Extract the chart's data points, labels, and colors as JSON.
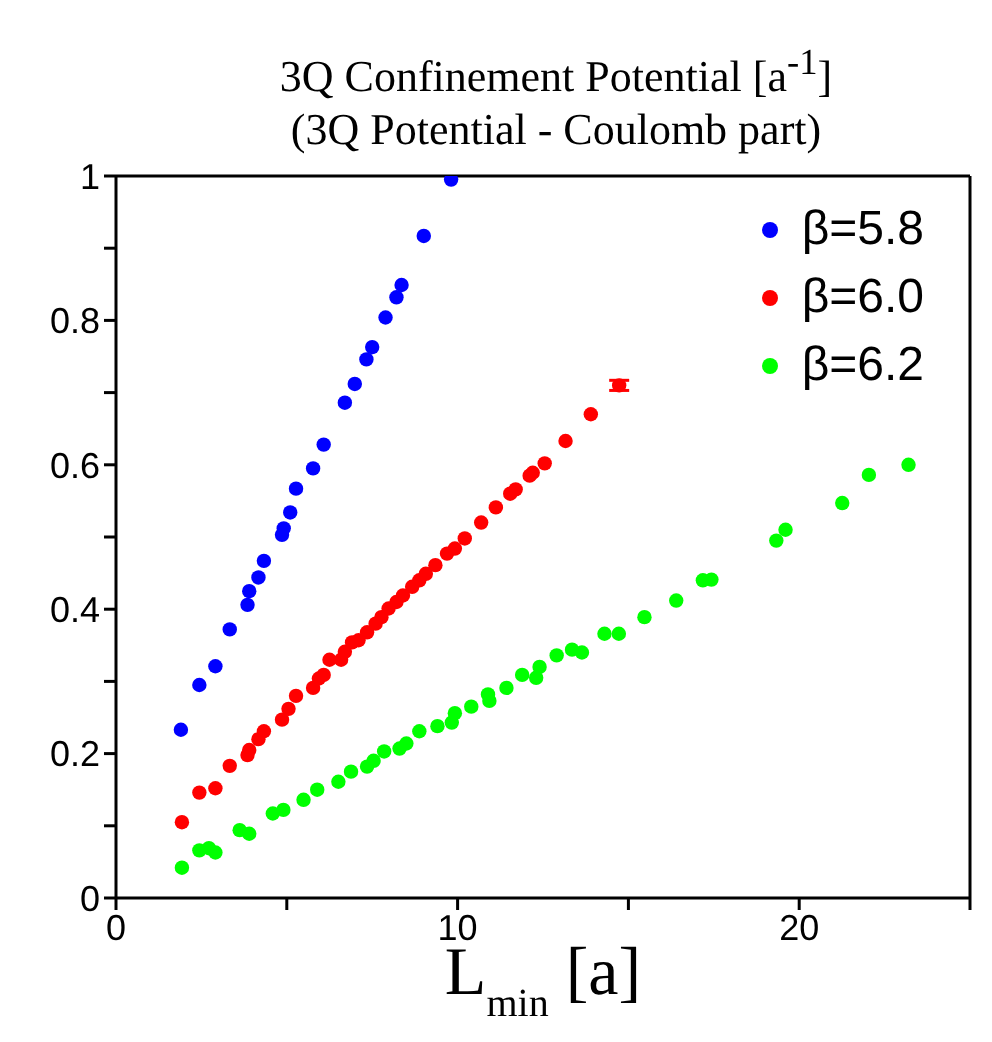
{
  "chart_data": {
    "type": "scatter",
    "title": "3Q Confinement Potential [a$^{-1}$]",
    "subtitle": "(3Q Potential - Coulomb part)",
    "xlabel": "L$_{min}$ [a]",
    "xlim": [
      0,
      25
    ],
    "xticks": [
      0,
      {
        "value": 5,
        "label": null
      },
      10,
      {
        "value": 15,
        "label": null
      },
      20,
      {
        "value": 25,
        "label": null
      }
    ],
    "ylim": [
      0,
      1
    ],
    "yticks": [
      0,
      {
        "value": 0.1,
        "label": null
      },
      0.2,
      {
        "value": 0.3,
        "label": null
      },
      0.4,
      {
        "value": 0.5,
        "label": null
      },
      0.6,
      {
        "value": 0.7,
        "label": null
      },
      0.8,
      {
        "value": 0.9,
        "label": null
      },
      1
    ],
    "grid": false,
    "legend": "top right",
    "marker": "circle",
    "series": [
      {
        "name": "β=5.8",
        "color": "#0000ff",
        "x": [
          1.9,
          2.44,
          2.91,
          3.33,
          3.85,
          3.9,
          4.17,
          4.33,
          4.86,
          4.91,
          5.1,
          5.27,
          5.77,
          6.08,
          6.7,
          6.99,
          7.33,
          7.5,
          7.89,
          8.21,
          8.36,
          9.01,
          9.81
        ],
        "values": [
          0.233,
          0.295,
          0.321,
          0.372,
          0.406,
          0.425,
          0.444,
          0.467,
          0.503,
          0.512,
          0.534,
          0.567,
          0.595,
          0.628,
          0.686,
          0.712,
          0.746,
          0.763,
          0.804,
          0.832,
          0.849,
          0.917,
          0.995
        ]
      },
      {
        "name": "β=6.0",
        "color": "#ff0000",
        "x": [
          1.93,
          2.44,
          2.91,
          3.33,
          3.85,
          3.9,
          4.17,
          4.33,
          4.86,
          5.05,
          5.27,
          5.77,
          5.94,
          6.08,
          6.25,
          6.59,
          6.7,
          6.91,
          7.1,
          7.35,
          7.6,
          7.77,
          7.98,
          8.21,
          8.4,
          8.67,
          8.88,
          9.07,
          9.35,
          9.69,
          9.92,
          10.21,
          10.69,
          11.12,
          11.54,
          11.7,
          12.11,
          12.2,
          12.55,
          13.16,
          13.9,
          14.73
        ],
        "values": [
          0.105,
          0.146,
          0.152,
          0.183,
          0.198,
          0.205,
          0.22,
          0.231,
          0.247,
          0.262,
          0.28,
          0.291,
          0.304,
          0.309,
          0.33,
          0.33,
          0.341,
          0.354,
          0.357,
          0.368,
          0.38,
          0.389,
          0.401,
          0.41,
          0.419,
          0.431,
          0.44,
          0.449,
          0.461,
          0.477,
          0.484,
          0.498,
          0.52,
          0.541,
          0.56,
          0.566,
          0.585,
          0.589,
          0.602,
          0.633,
          0.67,
          0.71
        ],
        "errors": [
          null,
          null,
          null,
          null,
          null,
          null,
          null,
          null,
          null,
          null,
          null,
          null,
          null,
          null,
          null,
          null,
          null,
          null,
          null,
          null,
          null,
          null,
          null,
          null,
          null,
          null,
          null,
          null,
          null,
          null,
          null,
          null,
          null,
          null,
          null,
          null,
          null,
          null,
          null,
          null,
          null,
          0.007
        ]
      },
      {
        "name": "β=6.2",
        "color": "#00ff00",
        "x": [
          1.93,
          2.44,
          2.72,
          2.91,
          3.62,
          3.9,
          4.59,
          4.9,
          5.49,
          5.89,
          6.51,
          6.88,
          7.35,
          7.54,
          7.85,
          8.3,
          8.5,
          8.88,
          9.41,
          9.83,
          9.92,
          10.4,
          10.89,
          10.93,
          11.43,
          11.89,
          12.3,
          12.4,
          12.9,
          13.35,
          13.64,
          14.3,
          14.72,
          15.47,
          16.4,
          17.18,
          17.43,
          19.33,
          19.6,
          21.26,
          22.04,
          23.2
        ],
        "values": [
          0.042,
          0.066,
          0.069,
          0.063,
          0.094,
          0.089,
          0.117,
          0.122,
          0.136,
          0.15,
          0.161,
          0.175,
          0.182,
          0.19,
          0.203,
          0.207,
          0.214,
          0.231,
          0.238,
          0.243,
          0.256,
          0.265,
          0.282,
          0.273,
          0.291,
          0.309,
          0.305,
          0.32,
          0.336,
          0.344,
          0.34,
          0.366,
          0.366,
          0.389,
          0.412,
          0.44,
          0.441,
          0.495,
          0.51,
          0.547,
          0.586,
          0.6
        ]
      }
    ]
  }
}
